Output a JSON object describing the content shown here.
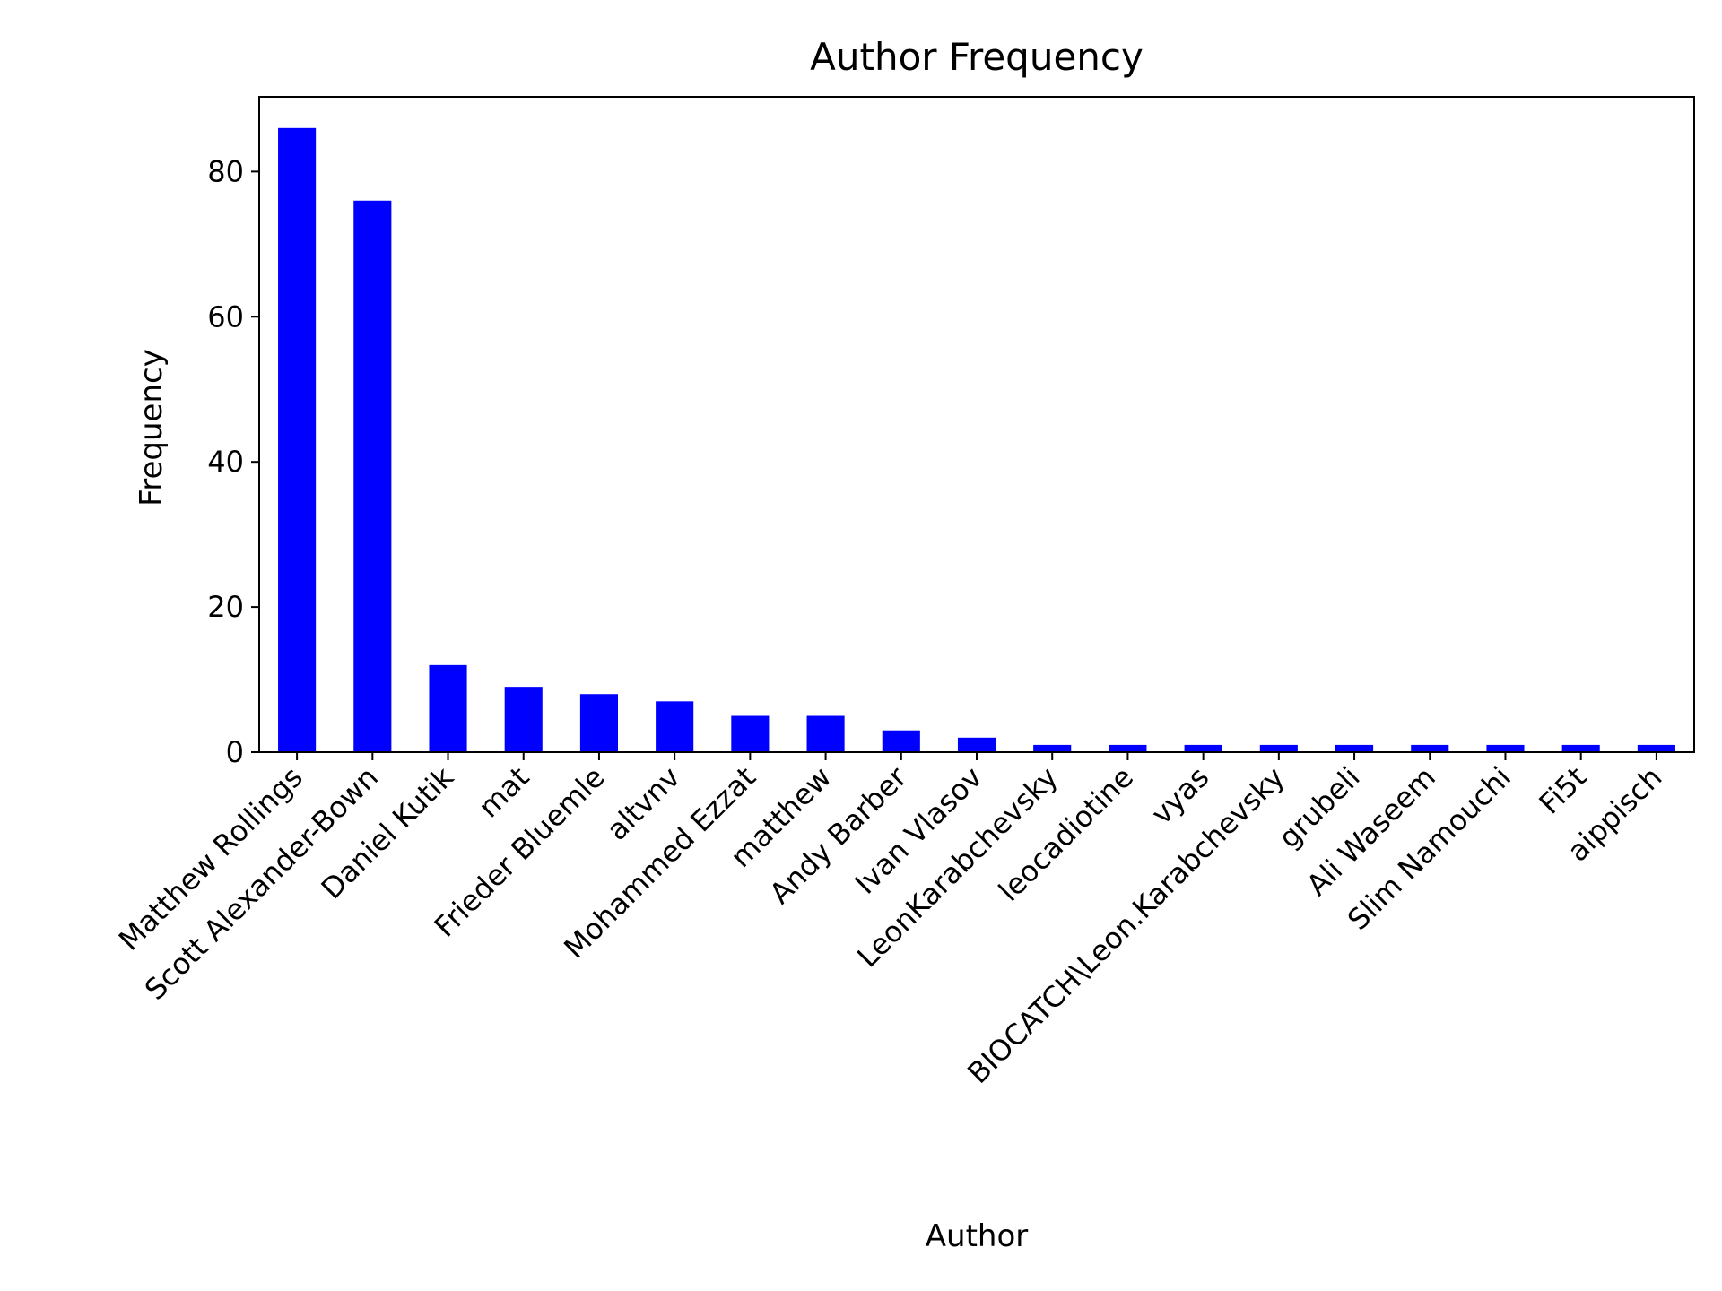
{
  "chart_data": {
    "type": "bar",
    "title": "Author Frequency",
    "xlabel": "Author",
    "ylabel": "Frequency",
    "ylim": [
      0,
      90.3
    ],
    "yticks": [
      0,
      20,
      40,
      60,
      80
    ],
    "bar_color": "#0000ff",
    "grid": false,
    "legend": "none",
    "categories": [
      "Matthew Rollings",
      "Scott Alexander-Bown",
      "Daniel Kutik",
      "mat",
      "Frieder Bluemle",
      "altvnv",
      "Mohammed Ezzat",
      "matthew",
      "Andy Barber",
      "Ivan Vlasov",
      "LeonKarabchevsky",
      "leocadiotine",
      "vyas",
      "BIOCATCH\\Leon.Karabchevsky",
      "grubeli",
      "Ali Waseem",
      "Slim Namouchi",
      "Fi5t",
      "aippisch"
    ],
    "values": [
      86,
      76,
      12,
      9,
      8,
      7,
      5,
      5,
      3,
      2,
      1,
      1,
      1,
      1,
      1,
      1,
      1,
      1,
      1
    ]
  }
}
